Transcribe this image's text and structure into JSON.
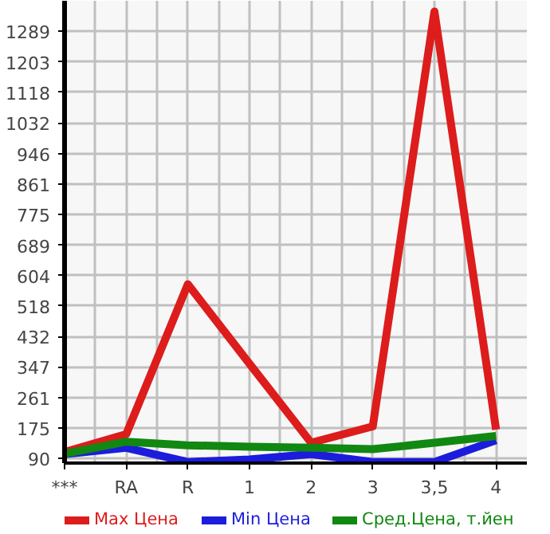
{
  "chart_data": {
    "type": "line",
    "categories": [
      "***",
      "RA",
      "R",
      "1",
      "2",
      "3",
      "3,5",
      "4"
    ],
    "series": [
      {
        "name": "Max Цена",
        "color": "#dd1c1c",
        "values": [
          108,
          158,
          579,
          356,
          134,
          180,
          1345,
          171
        ]
      },
      {
        "name": "Min Цена",
        "color": "#1c1cdd",
        "values": [
          102,
          120,
          80,
          87,
          102,
          80,
          80,
          141
        ]
      },
      {
        "name": "Сред.Цена, т.йен",
        "color": "#118811",
        "values": [
          103,
          137,
          127,
          123,
          120,
          116,
          134,
          153
        ]
      }
    ],
    "ylim": [
      77,
      1375
    ],
    "yticks": [
      90,
      175,
      261,
      347,
      432,
      518,
      604,
      689,
      775,
      861,
      946,
      1032,
      1118,
      1203,
      1289
    ],
    "grid": true,
    "legend": "bottom",
    "marker": "none",
    "line_style": "solid"
  }
}
